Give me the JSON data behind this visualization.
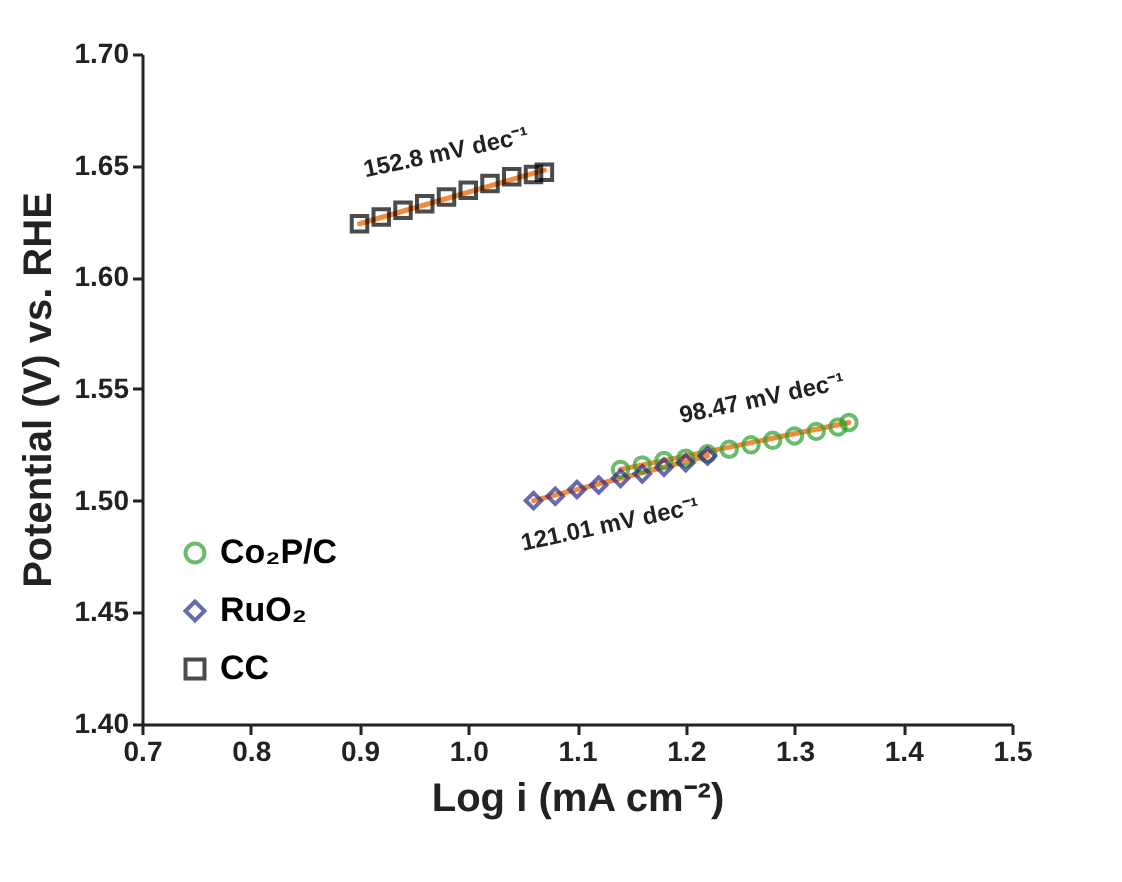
{
  "chart_data": {
    "type": "scatter",
    "xlabel": "Log i (mA cm⁻²)",
    "ylabel": "Potential (V) vs. RHE",
    "xlim": [
      0.7,
      1.5
    ],
    "ylim": [
      1.4,
      1.7
    ],
    "xticks": [
      0.7,
      0.8,
      0.9,
      {
        "value": 1,
        "label": "1.0"
      },
      1.1,
      1.2,
      1.3,
      1.4,
      1.5
    ],
    "yticks": [
      {
        "value": 1.4,
        "label": "1.40"
      },
      1.45,
      {
        "value": 1.5,
        "label": "1.50"
      },
      1.55,
      {
        "value": 1.6,
        "label": "1.60"
      },
      1.65,
      {
        "value": 1.7,
        "label": "1.70"
      }
    ],
    "grid": false,
    "legend": "bottom left",
    "series": [
      {
        "name": "Co₂P/C",
        "marker": "circle",
        "color": "#2ca02c",
        "x": [
          1.14,
          1.16,
          1.18,
          1.2,
          1.22,
          1.24,
          1.26,
          1.28,
          1.3,
          1.32,
          1.34,
          1.35
        ],
        "values": [
          1.514,
          1.516,
          1.518,
          1.519,
          1.521,
          1.523,
          1.525,
          1.527,
          1.529,
          1.531,
          1.533,
          1.535
        ]
      },
      {
        "name": "RuO₂",
        "marker": "diamond",
        "color": "#2a2a8c",
        "x": [
          1.06,
          1.08,
          1.1,
          1.12,
          1.14,
          1.16,
          1.18,
          1.2,
          1.22
        ],
        "values": [
          1.5,
          1.502,
          1.505,
          1.507,
          1.51,
          1.512,
          1.515,
          1.517,
          1.52
        ]
      },
      {
        "name": "CC",
        "marker": "square",
        "color": "#000000",
        "x": [
          0.9,
          0.92,
          0.94,
          0.96,
          0.98,
          1.0,
          1.02,
          1.04,
          1.06,
          1.07
        ],
        "values": [
          1.624,
          1.627,
          1.63,
          1.633,
          1.636,
          1.639,
          1.642,
          1.645,
          1.646,
          1.647
        ]
      },
      {
        "type": "line",
        "color": "#f28c3c",
        "x": [
          1.14,
          1.35
        ],
        "values": [
          1.514,
          1.535
        ]
      },
      {
        "type": "line",
        "color": "#f28c3c",
        "x": [
          1.06,
          1.22
        ],
        "values": [
          1.5,
          1.52
        ]
      },
      {
        "type": "line",
        "color": "#f28c3c",
        "x": [
          0.9,
          1.07
        ],
        "values": [
          1.624,
          1.648
        ]
      }
    ],
    "annotations": [
      "152.8 mV dec⁻¹",
      "98.47 mV dec⁻¹",
      "121.01 mV dec⁻¹"
    ]
  }
}
